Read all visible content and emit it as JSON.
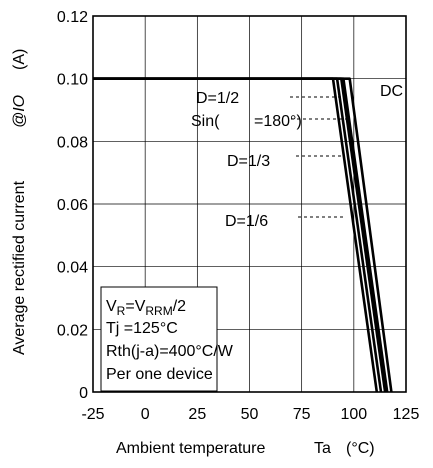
{
  "chart_data": {
    "type": "line",
    "xlabel_main": "Ambient temperature",
    "xlabel_symbol": "Ta",
    "xlabel_unit": "(°C)",
    "ylabel_main": "Average rectified current",
    "ylabel_symbol": "@IO",
    "ylabel_unit": "(A)",
    "xlim": [
      -25,
      125
    ],
    "ylim": [
      0,
      0.12
    ],
    "xticks": [
      "-25",
      "0",
      "25",
      "50",
      "75",
      "100",
      "125"
    ],
    "xtick_values": [
      -25,
      0,
      25,
      50,
      75,
      100,
      125
    ],
    "yticks": [
      "0",
      "0.02",
      "0.04",
      "0.06",
      "0.08",
      "0.10",
      "0.12"
    ],
    "ytick_values": [
      0,
      0.02,
      0.04,
      0.06,
      0.08,
      0.1,
      0.12
    ],
    "grid": true,
    "series": [
      {
        "name": "D=1/6",
        "points": [
          [
            -25,
            0.1
          ],
          [
            90,
            0.1
          ],
          [
            111,
            0
          ]
        ]
      },
      {
        "name": "D=1/3",
        "points": [
          [
            -25,
            0.1
          ],
          [
            92,
            0.1
          ],
          [
            113,
            0
          ]
        ]
      },
      {
        "name": "D=1/2",
        "points": [
          [
            -25,
            0.1
          ],
          [
            94,
            0.1
          ],
          [
            115,
            0
          ]
        ]
      },
      {
        "name": "Sin(θ=180°)",
        "points": [
          [
            -25,
            0.1
          ],
          [
            95,
            0.1
          ],
          [
            116,
            0
          ]
        ]
      },
      {
        "name": "DC",
        "points": [
          [
            -25,
            0.1
          ],
          [
            98,
            0.1
          ],
          [
            118,
            0
          ]
        ]
      }
    ],
    "annotations": [
      {
        "text": "DC",
        "x": 104,
        "y": 0.0985
      },
      {
        "text": "D=1/2",
        "x": 50,
        "y": 0.0965
      },
      {
        "text": "Sin(",
        "x": 41,
        "y": 0.0905,
        "gap_text": "=180°)"
      },
      {
        "text": "D=1/3",
        "x": 68,
        "y": 0.079
      },
      {
        "text": "D=1/6",
        "x": 68,
        "y": 0.0565
      }
    ],
    "conditions": [
      "V_R=V_RRM/2",
      "Tj =125°C",
      "Rth(j-a)=400°C/W",
      "Per one device"
    ]
  }
}
